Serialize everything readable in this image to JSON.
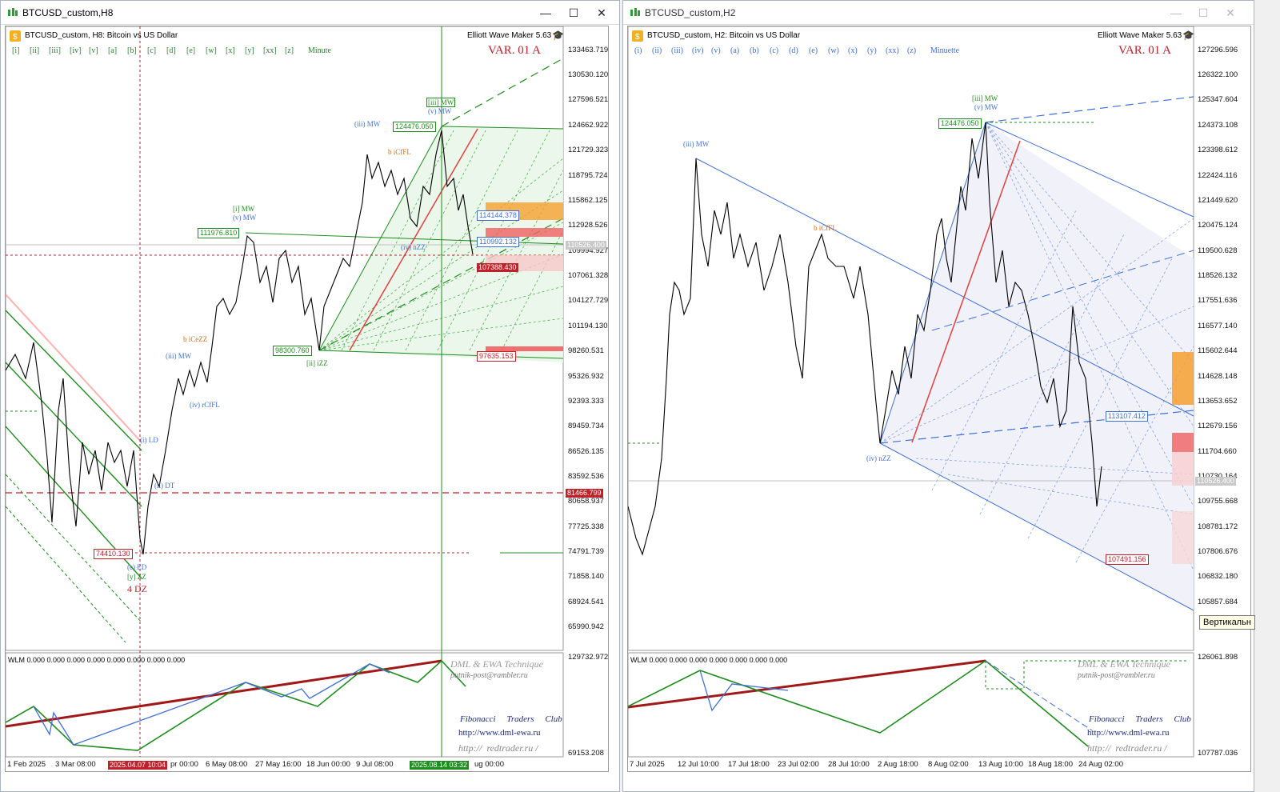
{
  "colors": {
    "green": "#1e8c1e",
    "blue": "#3f6fd4",
    "red": "#c0202a",
    "orange": "#d07020",
    "darkred": "#a01818"
  },
  "left": {
    "title": "BTCUSD_custom,H8",
    "header": "BTCUSD_custom, H8:  Bitcoin vs US Dollar",
    "ewm": "Elliott Wave Maker 5.63",
    "var_label": "VAR. 01 A",
    "wave_buttons": [
      "[i]",
      "[ii]",
      "[iii]",
      "[iv]",
      "[v]",
      "[a]",
      "[b]",
      "[c]",
      "[d]",
      "[e]",
      "[w]",
      "[x]",
      "[y]",
      "[xx]",
      "[z]",
      "Minute"
    ],
    "price_axis": [
      "133463.719",
      "130530.120",
      "127596.521",
      "124662.922",
      "121729.323",
      "118795.724",
      "115862.125",
      "112928.526",
      "109994.927",
      "107061.328",
      "104127.729",
      "101194.130",
      "98260.531",
      "95326.932",
      "92393.333",
      "89459.734",
      "86526.135",
      "83592.536",
      "80658.937",
      "77725.338",
      "74791.739",
      "71858.140",
      "68924.541",
      "65990.942"
    ],
    "ind_axis": [
      "129732.972",
      "69153.208"
    ],
    "time_axis": [
      "1 Feb 2025",
      "3 Mar 08:00",
      "pr 00:00",
      "6 May 08:00",
      "27 May 16:00",
      "18 Jun 00:00",
      "9 Jul 08:00",
      "ug 00:00"
    ],
    "time_marker_1": "2025.04.07 10:04",
    "time_marker_2": "2025.08.14 03:32",
    "current_price": "110526.400",
    "tags": {
      "t124476": "124476.050",
      "t111976": "111976.810",
      "t98300": "98300.760",
      "t74410": "74410.130",
      "t114144": "114144.378",
      "t110992": "110992.132",
      "t107": "107388.430",
      "t97635": "97635.153",
      "t81466": "81466.799"
    },
    "labels": {
      "iii_mw_top": "[iii] MW",
      "v_mw_top": "(v) MW",
      "iii_mw": "(iii) MW",
      "b_icffl": "b iCfFL",
      "i_mw": "[i] MW",
      "v_mw": "(v) MW",
      "iv_nzz": "(iv) nZZ",
      "ii_izz": "[ii] iZZ",
      "b_icezz": "b iCeZZ",
      "iii_mw2": "(iii) MW",
      "iv_rcffl": "(iv) rCfFL",
      "i_ld": "(i) LD",
      "ii_dt": "(ii) DT",
      "c_ed": "(c) ED",
      "y_zz": "[y] ZZ",
      "dz": "4 DZ"
    },
    "wlm": "WLM 0.000 0.000 0.000 0.000 0.000 0.000 0.000 0.000",
    "credits": {
      "dml": "DML & EWA Technique",
      "email": "putnik-post@rambler.ru",
      "club": "Fibonacci     Traders     Club",
      "site1": "http://www.dml-ewa.ru",
      "site2": "http://  redtrader.ru /"
    }
  },
  "right": {
    "title": "BTCUSD_custom,H2",
    "header": "BTCUSD_custom, H2:  Bitcoin vs US Dollar",
    "ewm": "Elliott Wave Maker 5.63",
    "var_label": "VAR. 01 A",
    "wave_buttons": [
      "(i)",
      "(ii)",
      "(iii)",
      "(iv)",
      "(v)",
      "(a)",
      "(b)",
      "(c)",
      "(d)",
      "(e)",
      "(w)",
      "(x)",
      "(y)",
      "(xx)",
      "(z)",
      "Minuette"
    ],
    "price_axis": [
      "127296.596",
      "126322.100",
      "125347.604",
      "124373.108",
      "123398.612",
      "122424.116",
      "121449.620",
      "120475.124",
      "119500.628",
      "118526.132",
      "117551.636",
      "116577.140",
      "115602.644",
      "114628.148",
      "113653.652",
      "112679.156",
      "111704.660",
      "110730.164",
      "109755.668",
      "108781.172",
      "107806.676",
      "106832.180",
      "105857.684"
    ],
    "ind_axis": [
      "126061.898",
      "107787.036"
    ],
    "time_axis": [
      "7 Jul 2025",
      "12 Jul 10:00",
      "17 Jul 18:00",
      "23 Jul 02:00",
      "28 Jul 10:00",
      "2 Aug 18:00",
      "8 Aug 02:00",
      "13 Aug 10:00",
      "18 Aug 18:00",
      "24 Aug 02:00"
    ],
    "current_price": "110526.400",
    "tags": {
      "t124476": "124476.050",
      "t113": "113107.412",
      "t107491": "107491.156"
    },
    "labels": {
      "iii_mw_top": "[iii] MW",
      "v_mw_top": "(v) MW",
      "iii_mw": "(iii) MW",
      "b_icffl": "b iCfFL",
      "iv_nzz": "(iv) nZZ"
    },
    "wlm": "WLM 0.000 0.000 0.000 0.000 0.000 0.000 0.000",
    "tooltip": "Вертикальн",
    "credits": {
      "dml": "DML & EWA Technique",
      "email": "putnik-post@rambler.ru",
      "club": "Fibonacci     Traders     Club",
      "site1": "http://www.dml-ewa.ru",
      "site2": "http://  redtrader.ru /"
    }
  }
}
